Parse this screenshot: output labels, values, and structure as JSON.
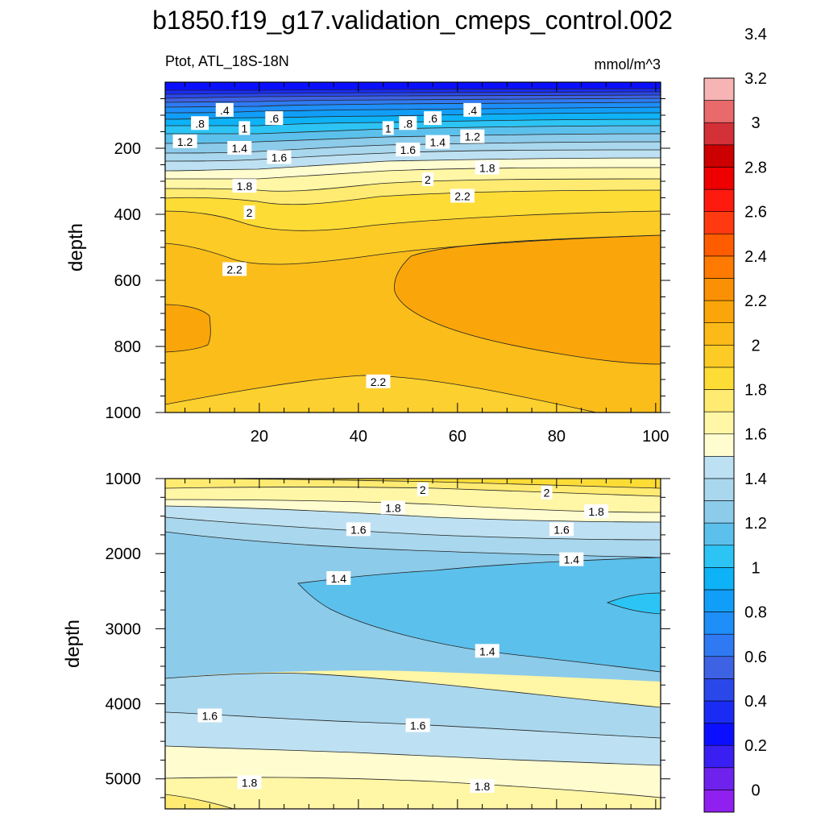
{
  "title": "b1850.f19_g17.validation_cmeps_control.002",
  "subtitle_left": "Ptot, ATL_18S-18N",
  "subtitle_right": "mmol/m^3",
  "colors": {
    "levels": [
      "#8f20f0",
      "#6f22ee",
      "#3a1ff2",
      "#0a10ff",
      "#1a2cf4",
      "#2a48ea",
      "#3e62e4",
      "#2f7af2",
      "#1e8ef8",
      "#119ef8",
      "#0eb2f6",
      "#2cc4f4",
      "#5cc0ec",
      "#8ccbea",
      "#a9d7ee",
      "#bde1f2",
      "#fffdd0",
      "#fff6a6",
      "#ffeb72",
      "#fddc36",
      "#fccb26",
      "#fbba18",
      "#faa60a",
      "#fa9105",
      "#ff7a00",
      "#ff5c00",
      "#ff3a10",
      "#ff1a10",
      "#ee0000",
      "#cc0000",
      "#d43038",
      "#e86a6a",
      "#f6b4b4"
    ]
  },
  "chart_data": [
    {
      "type": "contour",
      "panel": "upper",
      "xlabel": "",
      "ylabel": "depth",
      "xlim": [
        1,
        101
      ],
      "ylim": [
        1000,
        0
      ],
      "x_ticks": [
        20,
        40,
        60,
        80,
        100
      ],
      "x_tick_labels": [
        "20",
        "40",
        "60",
        "80",
        "100"
      ],
      "y_ticks": [
        200,
        400,
        600,
        800,
        1000
      ],
      "y_tick_labels": [
        "200",
        "400",
        "600",
        "800",
        "1000"
      ],
      "contour_labels": [
        {
          "text": ".4",
          "x": 13,
          "y": 85
        },
        {
          "text": ".6",
          "x": 23,
          "y": 110
        },
        {
          "text": ".8",
          "x": 8,
          "y": 125
        },
        {
          "text": "1",
          "x": 17,
          "y": 140
        },
        {
          "text": "1.2",
          "x": 5,
          "y": 180
        },
        {
          "text": "1.4",
          "x": 16,
          "y": 200
        },
        {
          "text": "1.6",
          "x": 24,
          "y": 228
        },
        {
          "text": "1.8",
          "x": 17,
          "y": 315
        },
        {
          "text": "2",
          "x": 18,
          "y": 395
        },
        {
          "text": "2.2",
          "x": 15,
          "y": 567
        },
        {
          "text": ".4",
          "x": 63,
          "y": 85
        },
        {
          "text": ".6",
          "x": 55,
          "y": 110
        },
        {
          "text": ".8",
          "x": 50,
          "y": 125
        },
        {
          "text": "1",
          "x": 46,
          "y": 140
        },
        {
          "text": "1.2",
          "x": 63,
          "y": 165
        },
        {
          "text": "1.4",
          "x": 56,
          "y": 182
        },
        {
          "text": "1.6",
          "x": 50,
          "y": 205
        },
        {
          "text": "1.8",
          "x": 66,
          "y": 260
        },
        {
          "text": "2",
          "x": 54,
          "y": 295
        },
        {
          "text": "2.2",
          "x": 61,
          "y": 345
        },
        {
          "text": "2.2",
          "x": 44,
          "y": 907
        }
      ]
    },
    {
      "type": "contour",
      "panel": "lower",
      "xlabel": "",
      "ylabel": "depth",
      "xlim": [
        1,
        101
      ],
      "ylim": [
        5400,
        1000
      ],
      "x_ticks": [
        20,
        40,
        60,
        80,
        100
      ],
      "y_ticks": [
        1000,
        2000,
        3000,
        4000,
        5000
      ],
      "y_tick_labels": [
        "1000",
        "2000",
        "3000",
        "4000",
        "5000"
      ],
      "contour_labels": [
        {
          "text": "2",
          "x": 53,
          "y": 1150
        },
        {
          "text": "2",
          "x": 78,
          "y": 1190
        },
        {
          "text": "1.8",
          "x": 47,
          "y": 1390
        },
        {
          "text": "1.8",
          "x": 88,
          "y": 1440
        },
        {
          "text": "1.6",
          "x": 40,
          "y": 1680
        },
        {
          "text": "1.6",
          "x": 81,
          "y": 1680
        },
        {
          "text": "1.4",
          "x": 83,
          "y": 2080
        },
        {
          "text": "1.4",
          "x": 36,
          "y": 2330
        },
        {
          "text": "1.4",
          "x": 66,
          "y": 3300
        },
        {
          "text": "1.6",
          "x": 10,
          "y": 4160
        },
        {
          "text": "1.6",
          "x": 52,
          "y": 4290
        },
        {
          "text": "1.8",
          "x": 18,
          "y": 5050
        },
        {
          "text": "1.8",
          "x": 65,
          "y": 5100
        }
      ]
    }
  ],
  "colorbar": {
    "labels": [
      "0",
      "0.2",
      "0.4",
      "0.6",
      "0.8",
      "1",
      "1.2",
      "1.4",
      "1.6",
      "1.8",
      "2",
      "2.2",
      "2.4",
      "2.6",
      "2.8",
      "3",
      "3.2",
      "3.4"
    ],
    "n_boxes": 33
  }
}
